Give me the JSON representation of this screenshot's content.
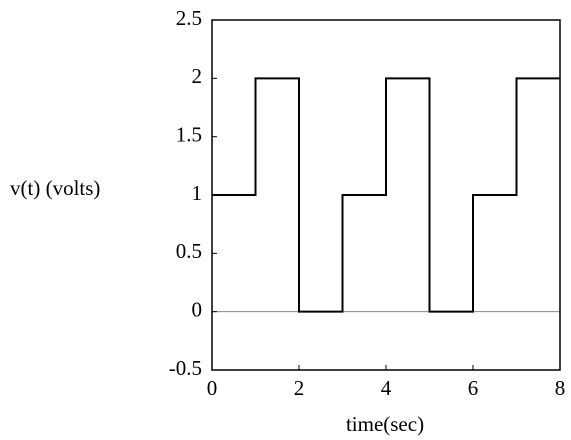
{
  "chart_data": {
    "type": "line",
    "x": [
      0,
      1,
      1,
      2,
      2,
      3,
      3,
      4,
      4,
      5,
      5,
      6,
      6,
      7,
      7,
      8
    ],
    "values": [
      1,
      1,
      2,
      2,
      0,
      0,
      1,
      1,
      2,
      2,
      0,
      0,
      1,
      1,
      2,
      2
    ],
    "color": "#000000",
    "xlabel": "time(sec)",
    "ylabel": "v(t) (volts)",
    "xlim": [
      0,
      8
    ],
    "xticks": [
      0,
      2,
      4,
      6,
      8
    ],
    "ylim": [
      -0.5,
      2.5
    ],
    "yticks": [
      -0.5,
      0,
      0.5,
      1,
      1.5,
      2,
      2.5
    ]
  }
}
